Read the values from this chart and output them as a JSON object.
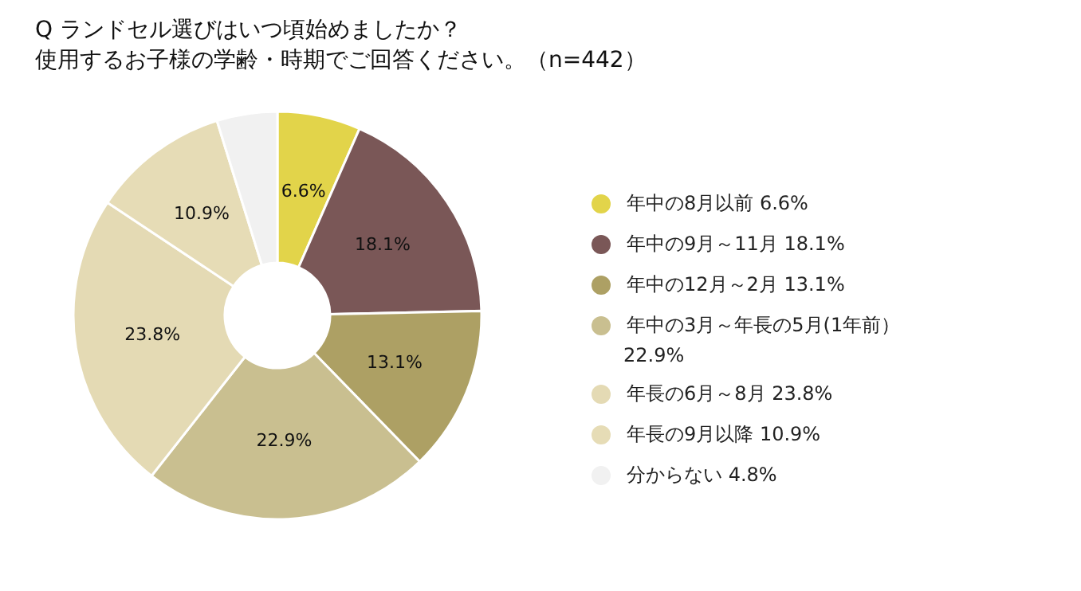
{
  "chart_data": {
    "type": "donut",
    "title": "Q ランドセル選びはいつ頃始めましたか？",
    "subtitle": "使用するお子様の学齢・時期でご回答ください。（n=442）",
    "categories": [
      "年中の8月以前  6.6%",
      "年中の9月～11月  18.1%",
      "年中の12月～2月  13.1%",
      "年中の3月～年長の5月(1年前）  22.9%",
      "年長の6月～8月  23.8%",
      "年長の9月以降  10.9%",
      "分からない  4.8%"
    ],
    "values": [
      6.6,
      18.1,
      13.1,
      22.9,
      23.8,
      10.9,
      4.8
    ],
    "colors": [
      "#e2d44a",
      "#7a5757",
      "#ada064",
      "#c9bf90",
      "#e4dab4",
      "#e6dcb6",
      "#f1f1f1"
    ],
    "value_labels": [
      "6.6%",
      "18.1%",
      "13.1%",
      "22.9%",
      "23.8%",
      "10.9%",
      null
    ],
    "legend": "right"
  }
}
